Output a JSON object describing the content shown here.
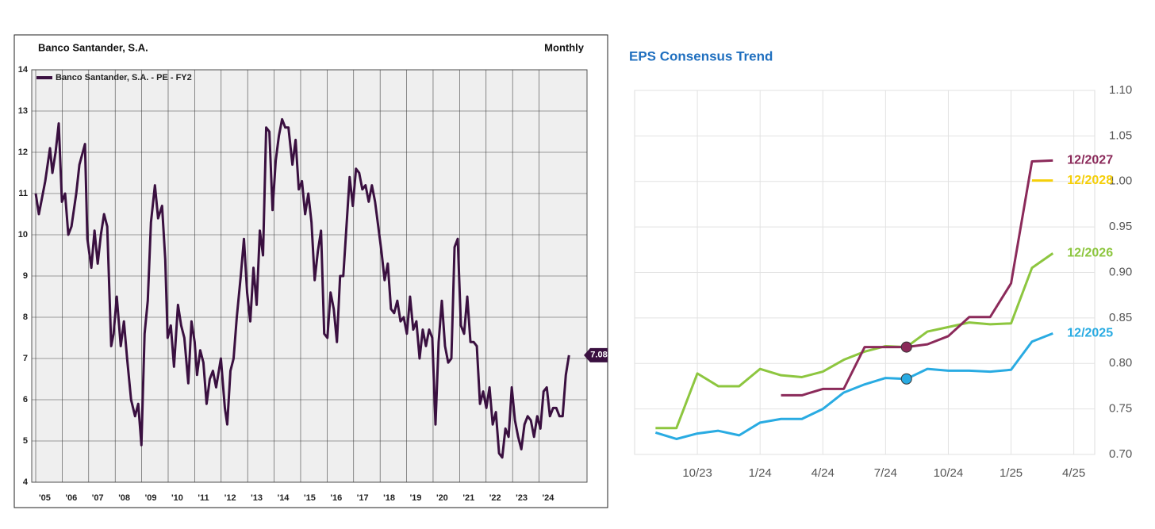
{
  "chart_data": [
    {
      "type": "line",
      "title": "Banco Santander, S.A.",
      "annotation": "Monthly",
      "x": [
        2005.0,
        2005.12,
        2005.36,
        2005.54,
        2005.63,
        2005.75,
        2005.87,
        2005.99,
        2006.11,
        2006.23,
        2006.35,
        2006.53,
        2006.65,
        2006.86,
        2006.95,
        2007.1,
        2007.22,
        2007.34,
        2007.46,
        2007.58,
        2007.7,
        2007.85,
        2007.94,
        2008.06,
        2008.21,
        2008.33,
        2008.45,
        2008.6,
        2008.75,
        2008.87,
        2008.99,
        2009.11,
        2009.23,
        2009.35,
        2009.5,
        2009.62,
        2009.77,
        2009.89,
        2009.98,
        2010.1,
        2010.22,
        2010.37,
        2010.49,
        2010.61,
        2010.76,
        2010.88,
        2011.0,
        2011.09,
        2011.21,
        2011.33,
        2011.45,
        2011.57,
        2011.69,
        2011.81,
        2011.99,
        2012.14,
        2012.23,
        2012.35,
        2012.47,
        2012.59,
        2012.74,
        2012.86,
        2012.98,
        2013.1,
        2013.22,
        2013.34,
        2013.46,
        2013.58,
        2013.7,
        2013.82,
        2013.94,
        2014.06,
        2014.18,
        2014.3,
        2014.42,
        2014.54,
        2014.69,
        2014.81,
        2014.93,
        2015.05,
        2015.17,
        2015.29,
        2015.41,
        2015.53,
        2015.65,
        2015.77,
        2015.89,
        2016.01,
        2016.13,
        2016.25,
        2016.37,
        2016.49,
        2016.61,
        2016.73,
        2016.85,
        2016.97,
        2017.09,
        2017.21,
        2017.33,
        2017.45,
        2017.57,
        2017.69,
        2017.81,
        2017.93,
        2018.05,
        2018.17,
        2018.29,
        2018.41,
        2018.53,
        2018.65,
        2018.77,
        2018.89,
        2019.01,
        2019.13,
        2019.25,
        2019.37,
        2019.49,
        2019.61,
        2019.73,
        2019.85,
        2019.97,
        2020.09,
        2020.21,
        2020.33,
        2020.45,
        2020.57,
        2020.69,
        2020.81,
        2020.93,
        2021.05,
        2021.17,
        2021.29,
        2021.41,
        2021.53,
        2021.65,
        2021.77,
        2021.89,
        2022.01,
        2022.13,
        2022.25,
        2022.37,
        2022.49,
        2022.61,
        2022.73,
        2022.85,
        2022.97,
        2023.09,
        2023.21,
        2023.33,
        2023.45,
        2023.57,
        2023.69,
        2023.81,
        2023.93,
        2024.05,
        2024.17,
        2024.29,
        2024.41,
        2024.53,
        2024.65,
        2024.77,
        2024.89,
        2025.01,
        2025.13
      ],
      "series": [
        {
          "name": "Banco Santander, S.A. - PE - FY2",
          "color": "#3a1040",
          "values": [
            11.0,
            10.5,
            11.3,
            12.1,
            11.5,
            12.0,
            12.7,
            10.8,
            11.0,
            10.0,
            10.2,
            11.0,
            11.7,
            12.2,
            9.9,
            9.2,
            10.1,
            9.3,
            10.0,
            10.5,
            10.2,
            7.3,
            7.6,
            8.5,
            7.3,
            7.9,
            7.0,
            6.0,
            5.6,
            5.9,
            4.9,
            7.6,
            8.4,
            10.3,
            11.2,
            10.4,
            10.7,
            9.4,
            7.5,
            7.8,
            6.8,
            8.3,
            7.8,
            7.5,
            6.4,
            7.9,
            7.4,
            6.6,
            7.2,
            6.9,
            5.9,
            6.5,
            6.7,
            6.3,
            7.0,
            5.8,
            5.4,
            6.7,
            7.0,
            8.0,
            9.0,
            9.9,
            8.6,
            7.9,
            9.2,
            8.3,
            10.1,
            9.5,
            12.6,
            12.5,
            10.6,
            11.8,
            12.4,
            12.8,
            12.6,
            12.6,
            11.7,
            12.3,
            11.1,
            11.3,
            10.5,
            11.0,
            10.3,
            8.9,
            9.6,
            10.1,
            7.6,
            7.5,
            8.6,
            8.2,
            7.4,
            9.0,
            9.0,
            10.2,
            11.4,
            10.7,
            11.6,
            11.5,
            11.1,
            11.2,
            10.8,
            11.2,
            10.8,
            10.2,
            9.6,
            8.9,
            9.3,
            8.2,
            8.1,
            8.4,
            7.9,
            8.0,
            7.6,
            8.5,
            7.7,
            7.9,
            7.0,
            7.7,
            7.3,
            7.7,
            7.5,
            5.4,
            7.4,
            8.4,
            7.3,
            6.9,
            7.0,
            9.7,
            9.9,
            7.8,
            7.6,
            8.5,
            7.4,
            7.4,
            7.3,
            5.9,
            6.2,
            5.8,
            6.3,
            5.4,
            5.7,
            4.7,
            4.6,
            5.3,
            5.1,
            6.3,
            5.5,
            5.1,
            4.8,
            5.4,
            5.6,
            5.5,
            5.1,
            5.6,
            5.3,
            6.2,
            6.3,
            5.6,
            5.8,
            5.8,
            5.6,
            5.6,
            6.6,
            7.08
          ]
        }
      ],
      "xlim": [
        2004.85,
        2025.81
      ],
      "ylim": [
        4,
        14
      ],
      "xticks": [
        {
          "value": 2005,
          "label": "'05"
        },
        {
          "value": 2006,
          "label": "'06"
        },
        {
          "value": 2007,
          "label": "'07"
        },
        {
          "value": 2008,
          "label": "'08"
        },
        {
          "value": 2009,
          "label": "'09"
        },
        {
          "value": 2010,
          "label": "'10"
        },
        {
          "value": 2011,
          "label": "'11"
        },
        {
          "value": 2012,
          "label": "'12"
        },
        {
          "value": 2013,
          "label": "'13"
        },
        {
          "value": 2014,
          "label": "'14"
        },
        {
          "value": 2015,
          "label": "'15"
        },
        {
          "value": 2016,
          "label": "'16"
        },
        {
          "value": 2017,
          "label": "'17"
        },
        {
          "value": 2018,
          "label": "'18"
        },
        {
          "value": 2019,
          "label": "'19"
        },
        {
          "value": 2020,
          "label": "'20"
        },
        {
          "value": 2021,
          "label": "'21"
        },
        {
          "value": 2022,
          "label": "'22"
        },
        {
          "value": 2023,
          "label": "'23"
        },
        {
          "value": 2024,
          "label": "'24"
        }
      ],
      "yticks": [
        4,
        5,
        6,
        7,
        8,
        9,
        10,
        11,
        12,
        13,
        14
      ],
      "grid": true,
      "legend": "top-left",
      "end_value_tag": true
    },
    {
      "type": "line",
      "title": "EPS Consensus Trend",
      "x": [
        "2023-08",
        "2023-09",
        "2023-10",
        "2023-11",
        "2023-12",
        "2024-01",
        "2024-02",
        "2024-03",
        "2024-04",
        "2024-05",
        "2024-06",
        "2024-07",
        "2024-08",
        "2024-09",
        "2024-10",
        "2024-11",
        "2024-12",
        "2025-01",
        "2025-02",
        "2025-03"
      ],
      "series": [
        {
          "name": "12/2025",
          "color": "#29abe2",
          "marker": true,
          "values": [
            0.724,
            0.717,
            0.723,
            0.726,
            0.721,
            0.735,
            0.739,
            0.739,
            0.75,
            0.768,
            0.777,
            0.784,
            0.783,
            0.794,
            0.792,
            0.792,
            0.791,
            0.793,
            0.824,
            0.833
          ]
        },
        {
          "name": "12/2026",
          "color": "#8dc63f",
          "values": [
            0.729,
            0.729,
            0.789,
            0.775,
            0.775,
            0.794,
            0.787,
            0.785,
            0.791,
            0.804,
            0.813,
            0.819,
            0.818,
            0.835,
            0.84,
            0.845,
            0.843,
            0.844,
            0.905,
            0.921
          ]
        },
        {
          "name": "12/2027",
          "color": "#8b2a5a",
          "marker": true,
          "values": [
            null,
            null,
            null,
            null,
            null,
            null,
            0.765,
            0.765,
            0.772,
            0.772,
            0.818,
            0.818,
            0.818,
            0.821,
            0.83,
            0.851,
            0.851,
            0.888,
            1.022,
            1.023
          ]
        },
        {
          "name": "12/2028",
          "color": "#f5cf0a",
          "values": [
            null,
            null,
            null,
            null,
            null,
            null,
            null,
            null,
            null,
            null,
            null,
            null,
            null,
            null,
            null,
            null,
            null,
            null,
            1.001,
            1.001
          ]
        }
      ],
      "xlim": [
        "2023-07",
        "2025-05"
      ],
      "ylim": [
        0.7,
        1.1
      ],
      "xticks": [
        {
          "value": "2023-10",
          "label": "10/23"
        },
        {
          "value": "2024-01",
          "label": "1/24"
        },
        {
          "value": "2024-04",
          "label": "4/24"
        },
        {
          "value": "2024-07",
          "label": "7/24"
        },
        {
          "value": "2024-10",
          "label": "10/24"
        },
        {
          "value": "2025-01",
          "label": "1/25"
        },
        {
          "value": "2025-04",
          "label": "4/25"
        }
      ],
      "yticks": [
        {
          "value": 0.7,
          "label": "0.70"
        },
        {
          "value": 0.75,
          "label": "0.75"
        },
        {
          "value": 0.8,
          "label": "0.80"
        },
        {
          "value": 0.85,
          "label": "0.85"
        },
        {
          "value": 0.9,
          "label": "0.90"
        },
        {
          "value": 0.95,
          "label": "0.95"
        },
        {
          "value": 1.0,
          "label": "1.00"
        },
        {
          "value": 1.05,
          "label": "1.05"
        },
        {
          "value": 1.1,
          "label": "1.10"
        }
      ],
      "grid": true,
      "y_axis_side": "right",
      "series_labels": "end",
      "highlight_x": "2024-08"
    }
  ]
}
